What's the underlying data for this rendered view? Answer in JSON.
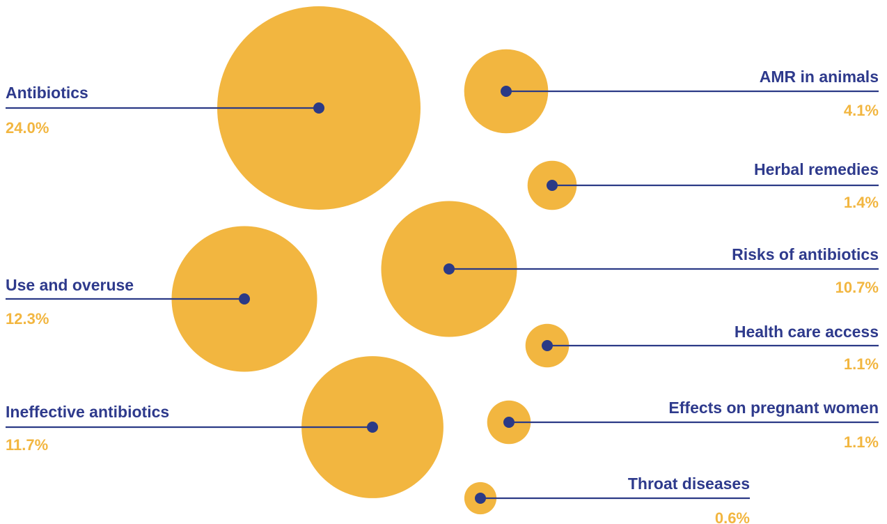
{
  "chart_data": {
    "type": "bubble",
    "colors": {
      "bubble": "#F2B640",
      "line": "#2B3A86",
      "label": "#2E3A8C",
      "value": "#F2B640"
    },
    "items": [
      {
        "name": "Antibiotics",
        "value_label": "24.0%",
        "value": 24.0
      },
      {
        "name": "AMR in animals",
        "value_label": "4.1%",
        "value": 4.1
      },
      {
        "name": "Herbal remedies",
        "value_label": "1.4%",
        "value": 1.4
      },
      {
        "name": "Risks of antibiotics",
        "value_label": "10.7%",
        "value": 10.7
      },
      {
        "name": "Use and overuse",
        "value_label": "12.3%",
        "value": 12.3
      },
      {
        "name": "Health care access",
        "value_label": "1.1%",
        "value": 1.1
      },
      {
        "name": "Ineffective antibiotics",
        "value_label": "11.7%",
        "value": 11.7
      },
      {
        "name": "Effects on pregnant women",
        "value_label": "1.1%",
        "value": 1.1
      },
      {
        "name": "Throat diseases",
        "value_label": "0.6%",
        "value": 0.6
      }
    ]
  }
}
